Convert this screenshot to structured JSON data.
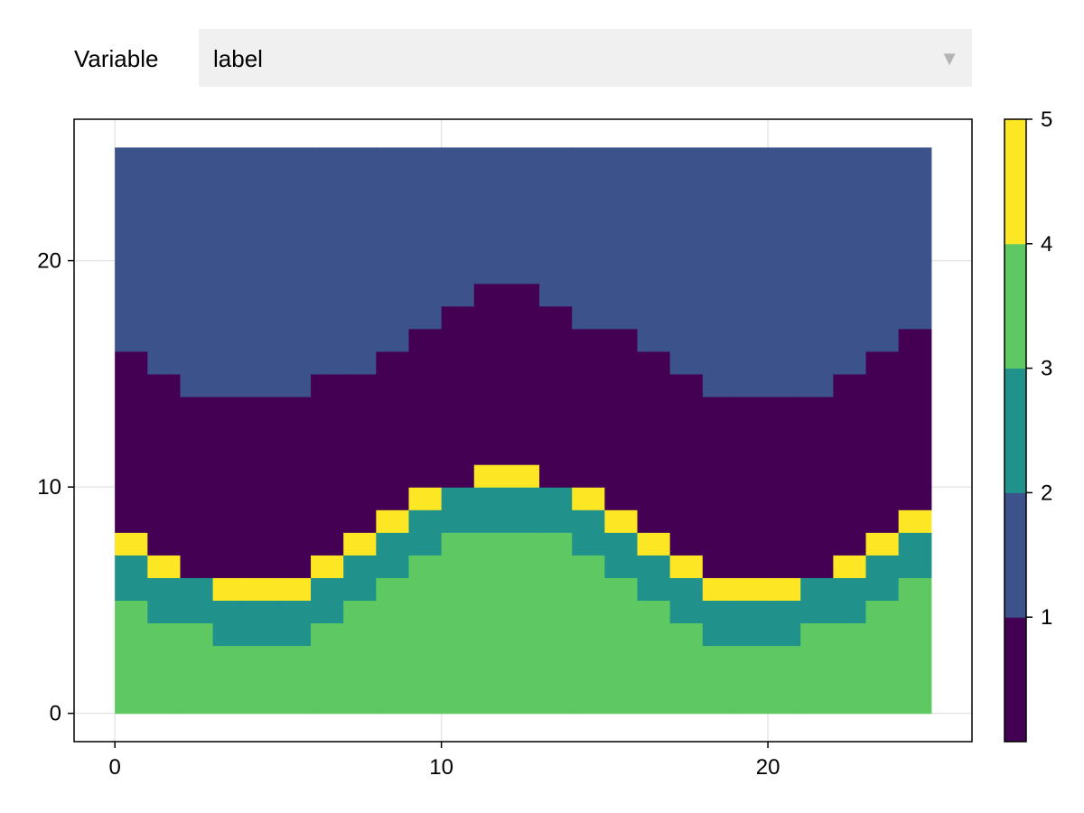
{
  "control": {
    "label": "Variable",
    "selected": "label",
    "arrow_icon": "triangle-down-icon"
  },
  "chart_data": {
    "type": "heatmap",
    "title": "",
    "xlabel": "",
    "ylabel": "",
    "xlim": [
      -1.25,
      26.25
    ],
    "ylim": [
      -1.25,
      26.25
    ],
    "x_ticks": [
      0,
      10,
      20
    ],
    "y_ticks": [
      0,
      10,
      20
    ],
    "grid": true,
    "cell_size": 1,
    "extent": {
      "x": [
        0,
        25
      ],
      "y": [
        0,
        25
      ]
    },
    "columns": 25,
    "rows": 25,
    "colormap": [
      "#440154",
      "#3b528b",
      "#21918c",
      "#5ec962",
      "#fde725"
    ],
    "colorbar": {
      "range": [
        0,
        5
      ],
      "ticks": [
        1,
        2,
        3,
        4,
        5
      ],
      "levels": 5
    },
    "column_boundaries": {
      "green_top": [
        5,
        4,
        4,
        3,
        3,
        3,
        4,
        5,
        6,
        7,
        8,
        8,
        8,
        8,
        7,
        6,
        5,
        4,
        3,
        3,
        3,
        4,
        4,
        5,
        6
      ],
      "teal_top": [
        7,
        6,
        6,
        5,
        5,
        5,
        6,
        7,
        8,
        9,
        10,
        10,
        10,
        10,
        9,
        8,
        7,
        6,
        5,
        5,
        5,
        6,
        6,
        7,
        8
      ],
      "yellow_top": [
        8,
        7,
        6,
        6,
        6,
        6,
        7,
        8,
        9,
        10,
        10,
        11,
        11,
        10,
        10,
        9,
        8,
        7,
        6,
        6,
        6,
        6,
        7,
        8,
        9
      ],
      "purple_top": [
        16,
        15,
        14,
        14,
        14,
        14,
        15,
        15,
        16,
        17,
        18,
        19,
        19,
        18,
        17,
        17,
        16,
        15,
        14,
        14,
        14,
        14,
        15,
        16,
        17
      ],
      "blue_top": [
        25,
        25,
        25,
        25,
        25,
        25,
        25,
        25,
        25,
        25,
        25,
        25,
        25,
        25,
        25,
        25,
        25,
        25,
        25,
        25,
        25,
        25,
        25,
        25,
        25
      ]
    },
    "layer_values": {
      "green": 3.5,
      "teal": 2.5,
      "yellow": 4.5,
      "purple": 0.5,
      "blue": 1.5
    }
  }
}
